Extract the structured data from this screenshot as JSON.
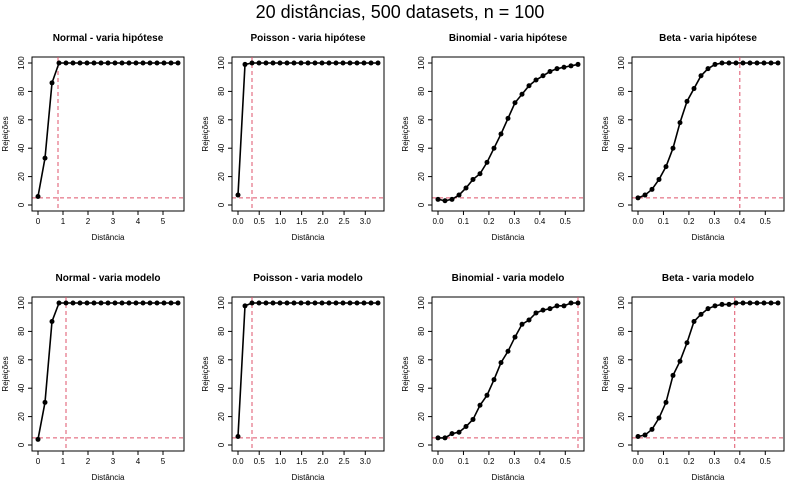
{
  "title": "20 distâncias, 500 datasets, n = 100",
  "chart_data": [
    {
      "type": "line",
      "title": "Normal - varia hipótese",
      "xlabel": "Distância",
      "ylabel": "Rejeições",
      "xlim": [
        0,
        5.6
      ],
      "ylim": [
        0,
        100
      ],
      "xticks": [
        0,
        1,
        2,
        3,
        4,
        5
      ],
      "xtick_labels": [
        "0",
        "1",
        "2",
        "3",
        "4",
        "5"
      ],
      "yticks": [
        0,
        20,
        40,
        60,
        80,
        100
      ],
      "yref": 5,
      "xref": 0.8,
      "x": [
        0,
        0.28,
        0.56,
        0.84,
        1.12,
        1.4,
        1.68,
        1.96,
        2.24,
        2.52,
        2.8,
        3.08,
        3.36,
        3.64,
        3.92,
        4.2,
        4.48,
        4.76,
        5.04,
        5.32,
        5.6
      ],
      "y": [
        6,
        33,
        86,
        100,
        100,
        100,
        100,
        100,
        100,
        100,
        100,
        100,
        100,
        100,
        100,
        100,
        100,
        100,
        100,
        100,
        100
      ]
    },
    {
      "type": "line",
      "title": "Poisson - varia hipótese",
      "xlabel": "Distância",
      "ylabel": "Rejeições",
      "xlim": [
        0,
        3.3
      ],
      "ylim": [
        0,
        100
      ],
      "xticks": [
        0,
        0.5,
        1,
        1.5,
        2,
        2.5,
        3
      ],
      "xtick_labels": [
        "0.0",
        "0.5",
        "1.0",
        "1.5",
        "2.0",
        "2.5",
        "3.0"
      ],
      "yticks": [
        0,
        20,
        40,
        60,
        80,
        100
      ],
      "yref": 5,
      "xref": 0.33,
      "x": [
        0,
        0.165,
        0.33,
        0.495,
        0.66,
        0.825,
        0.99,
        1.155,
        1.32,
        1.485,
        1.65,
        1.815,
        1.98,
        2.145,
        2.31,
        2.475,
        2.64,
        2.805,
        2.97,
        3.135,
        3.3
      ],
      "y": [
        7,
        99,
        100,
        100,
        100,
        100,
        100,
        100,
        100,
        100,
        100,
        100,
        100,
        100,
        100,
        100,
        100,
        100,
        100,
        100,
        100
      ]
    },
    {
      "type": "line",
      "title": "Binomial - varia hipótese",
      "xlabel": "Distância",
      "ylabel": "Rejeições",
      "xlim": [
        0,
        0.55
      ],
      "ylim": [
        0,
        100
      ],
      "xticks": [
        0,
        0.1,
        0.2,
        0.3,
        0.4,
        0.5
      ],
      "xtick_labels": [
        "0.0",
        "0.1",
        "0.2",
        "0.3",
        "0.4",
        "0.5"
      ],
      "yticks": [
        0,
        20,
        40,
        60,
        80,
        100
      ],
      "yref": 5,
      "xref": null,
      "x": [
        0,
        0.0275,
        0.055,
        0.0825,
        0.11,
        0.1375,
        0.165,
        0.1925,
        0.22,
        0.2475,
        0.275,
        0.3025,
        0.33,
        0.3575,
        0.385,
        0.4125,
        0.44,
        0.4675,
        0.495,
        0.5225,
        0.55
      ],
      "y": [
        4,
        3,
        4,
        7,
        12,
        18,
        22,
        30,
        40,
        50,
        61,
        72,
        78,
        84,
        88,
        91,
        94,
        96,
        97,
        98,
        99
      ]
    },
    {
      "type": "line",
      "title": "Beta - varia hipótese",
      "xlabel": "Distância",
      "ylabel": "Rejeições",
      "xlim": [
        0,
        0.55
      ],
      "ylim": [
        0,
        100
      ],
      "xticks": [
        0,
        0.1,
        0.2,
        0.3,
        0.4,
        0.5
      ],
      "xtick_labels": [
        "0.0",
        "0.1",
        "0.2",
        "0.3",
        "0.4",
        "0.5"
      ],
      "yticks": [
        0,
        20,
        40,
        60,
        80,
        100
      ],
      "yref": 5,
      "xref": 0.4,
      "x": [
        0,
        0.0275,
        0.055,
        0.0825,
        0.11,
        0.1375,
        0.165,
        0.1925,
        0.22,
        0.2475,
        0.275,
        0.3025,
        0.33,
        0.3575,
        0.385,
        0.4125,
        0.44,
        0.4675,
        0.495,
        0.5225,
        0.55
      ],
      "y": [
        5,
        7,
        11,
        18,
        27,
        40,
        58,
        73,
        82,
        91,
        96,
        99,
        100,
        100,
        100,
        100,
        100,
        100,
        100,
        100,
        100
      ]
    },
    {
      "type": "line",
      "title": "Normal - varia modelo",
      "xlabel": "Distância",
      "ylabel": "Rejeições",
      "xlim": [
        0,
        5.6
      ],
      "ylim": [
        0,
        100
      ],
      "xticks": [
        0,
        1,
        2,
        3,
        4,
        5
      ],
      "xtick_labels": [
        "0",
        "1",
        "2",
        "3",
        "4",
        "5"
      ],
      "yticks": [
        0,
        20,
        40,
        60,
        80,
        100
      ],
      "yref": 5,
      "xref": 1.12,
      "x": [
        0,
        0.28,
        0.56,
        0.84,
        1.12,
        1.4,
        1.68,
        1.96,
        2.24,
        2.52,
        2.8,
        3.08,
        3.36,
        3.64,
        3.92,
        4.2,
        4.48,
        4.76,
        5.04,
        5.32,
        5.6
      ],
      "y": [
        4,
        30,
        87,
        100,
        100,
        100,
        100,
        100,
        100,
        100,
        100,
        100,
        100,
        100,
        100,
        100,
        100,
        100,
        100,
        100,
        100
      ]
    },
    {
      "type": "line",
      "title": "Poisson - varia modelo",
      "xlabel": "Distância",
      "ylabel": "Rejeições",
      "xlim": [
        0,
        3.3
      ],
      "ylim": [
        0,
        100
      ],
      "xticks": [
        0,
        0.5,
        1,
        1.5,
        2,
        2.5,
        3
      ],
      "xtick_labels": [
        "0.0",
        "0.5",
        "1.0",
        "1.5",
        "2.0",
        "2.5",
        "3.0"
      ],
      "yticks": [
        0,
        20,
        40,
        60,
        80,
        100
      ],
      "yref": 5,
      "xref": 0.33,
      "x": [
        0,
        0.165,
        0.33,
        0.495,
        0.66,
        0.825,
        0.99,
        1.155,
        1.32,
        1.485,
        1.65,
        1.815,
        1.98,
        2.145,
        2.31,
        2.475,
        2.64,
        2.805,
        2.97,
        3.135,
        3.3
      ],
      "y": [
        6,
        98,
        100,
        100,
        100,
        100,
        100,
        100,
        100,
        100,
        100,
        100,
        100,
        100,
        100,
        100,
        100,
        100,
        100,
        100,
        100
      ]
    },
    {
      "type": "line",
      "title": "Binomial - varia modelo",
      "xlabel": "Distância",
      "ylabel": "Rejeições",
      "xlim": [
        0,
        0.55
      ],
      "ylim": [
        0,
        100
      ],
      "xticks": [
        0,
        0.1,
        0.2,
        0.3,
        0.4,
        0.5
      ],
      "xtick_labels": [
        "0.0",
        "0.1",
        "0.2",
        "0.3",
        "0.4",
        "0.5"
      ],
      "yticks": [
        0,
        20,
        40,
        60,
        80,
        100
      ],
      "yref": 5,
      "xref": 0.55,
      "x": [
        0,
        0.0275,
        0.055,
        0.0825,
        0.11,
        0.1375,
        0.165,
        0.1925,
        0.22,
        0.2475,
        0.275,
        0.3025,
        0.33,
        0.3575,
        0.385,
        0.4125,
        0.44,
        0.4675,
        0.495,
        0.5225,
        0.55
      ],
      "y": [
        5,
        5,
        8,
        9,
        13,
        18,
        28,
        35,
        46,
        58,
        66,
        76,
        85,
        88,
        93,
        95,
        96,
        98,
        98,
        100,
        100
      ]
    },
    {
      "type": "line",
      "title": "Beta - varia modelo",
      "xlabel": "Distância",
      "ylabel": "Rejeições",
      "xlim": [
        0,
        0.55
      ],
      "ylim": [
        0,
        100
      ],
      "xticks": [
        0,
        0.1,
        0.2,
        0.3,
        0.4,
        0.5
      ],
      "xtick_labels": [
        "0.0",
        "0.1",
        "0.2",
        "0.3",
        "0.4",
        "0.5"
      ],
      "yticks": [
        0,
        20,
        40,
        60,
        80,
        100
      ],
      "yref": 5,
      "xref": 0.38,
      "x": [
        0,
        0.0275,
        0.055,
        0.0825,
        0.11,
        0.1375,
        0.165,
        0.1925,
        0.22,
        0.2475,
        0.275,
        0.3025,
        0.33,
        0.3575,
        0.385,
        0.4125,
        0.44,
        0.4675,
        0.495,
        0.5225,
        0.55
      ],
      "y": [
        6,
        7,
        11,
        19,
        30,
        49,
        59,
        72,
        87,
        92,
        96,
        98,
        99,
        99,
        100,
        100,
        100,
        100,
        100,
        100,
        100
      ]
    }
  ],
  "colors": {
    "line": "#000000",
    "reference": "#df536b",
    "axis": "#000000"
  }
}
